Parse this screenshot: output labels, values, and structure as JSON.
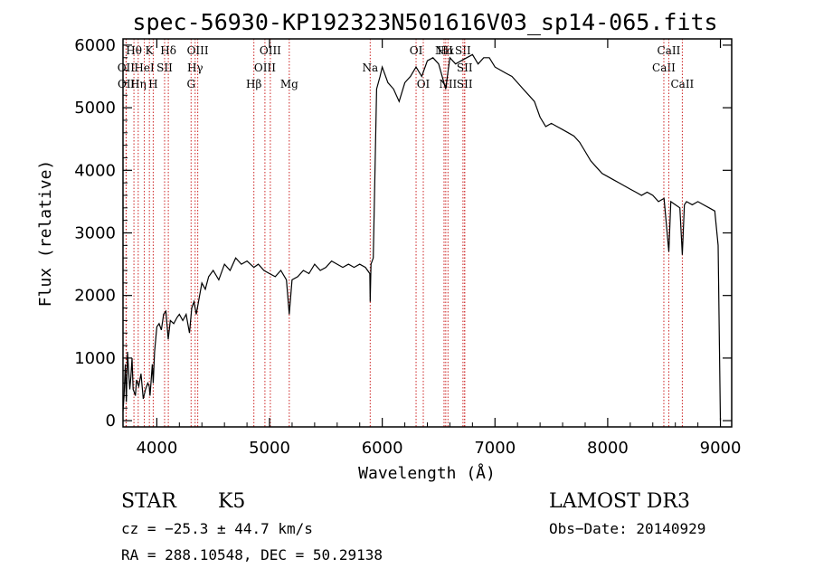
{
  "chart_data": {
    "type": "line",
    "title": "spec-56930-KP192323N501616V03_sp14-065.fits",
    "xlabel": "Wavelength (Å)",
    "ylabel": "Flux (relative)",
    "xlim": [
      3700,
      9100
    ],
    "ylim": [
      -100,
      6100
    ],
    "xticks": [
      4000,
      5000,
      6000,
      7000,
      8000,
      9000
    ],
    "yticks": [
      0,
      1000,
      2000,
      3000,
      4000,
      5000,
      6000
    ],
    "grid": false,
    "series": [
      {
        "x": [
          3700,
          3710,
          3720,
          3730,
          3740,
          3750,
          3760,
          3770,
          3780,
          3790,
          3800,
          3810,
          3820,
          3840,
          3860,
          3880,
          3900,
          3920,
          3933,
          3940,
          3960,
          3968,
          3980,
          4000,
          4020,
          4040,
          4060,
          4080,
          4101,
          4120,
          4150,
          4180,
          4200,
          4230,
          4260,
          4290,
          4310,
          4330,
          4350,
          4380,
          4400,
          4430,
          4460,
          4500,
          4550,
          4600,
          4650,
          4700,
          4750,
          4800,
          4861,
          4900,
          4950,
          5000,
          5050,
          5100,
          5150,
          5175,
          5200,
          5250,
          5300,
          5350,
          5400,
          5450,
          5500,
          5550,
          5600,
          5650,
          5700,
          5750,
          5800,
          5850,
          5890,
          5893,
          5900,
          5920,
          5950,
          5980,
          6000,
          6050,
          6100,
          6150,
          6200,
          6250,
          6300,
          6350,
          6400,
          6450,
          6500,
          6563,
          6600,
          6650,
          6700,
          6750,
          6800,
          6850,
          6900,
          6950,
          7000,
          7050,
          7100,
          7150,
          7200,
          7250,
          7300,
          7350,
          7400,
          7450,
          7500,
          7550,
          7600,
          7650,
          7700,
          7750,
          7800,
          7850,
          7900,
          7950,
          8000,
          8050,
          8100,
          8150,
          8200,
          8250,
          8300,
          8350,
          8400,
          8450,
          8500,
          8542,
          8560,
          8600,
          8640,
          8662,
          8680,
          8700,
          8750,
          8800,
          8850,
          8900,
          8950,
          8980,
          9000
        ],
        "y": [
          150,
          400,
          900,
          300,
          1100,
          800,
          500,
          700,
          1000,
          500,
          450,
          400,
          650,
          550,
          750,
          350,
          500,
          600,
          550,
          400,
          900,
          600,
          1100,
          1500,
          1550,
          1450,
          1700,
          1750,
          1300,
          1600,
          1550,
          1650,
          1700,
          1600,
          1700,
          1400,
          1800,
          1900,
          1700,
          2000,
          2200,
          2100,
          2300,
          2400,
          2250,
          2500,
          2400,
          2600,
          2500,
          2550,
          2450,
          2500,
          2400,
          2350,
          2300,
          2400,
          2250,
          1700,
          2250,
          2300,
          2400,
          2350,
          2500,
          2400,
          2450,
          2550,
          2500,
          2450,
          2500,
          2450,
          2500,
          2450,
          2350,
          1900,
          2500,
          2600,
          5300,
          5500,
          5650,
          5400,
          5300,
          5100,
          5400,
          5500,
          5650,
          5500,
          5750,
          5800,
          5700,
          5300,
          5800,
          5700,
          5750,
          5800,
          5850,
          5700,
          5800,
          5800,
          5650,
          5600,
          5550,
          5500,
          5400,
          5300,
          5200,
          5100,
          4850,
          4700,
          4750,
          4700,
          4650,
          4600,
          4550,
          4450,
          4300,
          4150,
          4050,
          3950,
          3900,
          3850,
          3800,
          3750,
          3700,
          3650,
          3600,
          3650,
          3600,
          3500,
          3550,
          2700,
          3500,
          3450,
          3400,
          2650,
          3450,
          3500,
          3450,
          3500,
          3450,
          3400,
          3350,
          2800,
          0
        ]
      }
    ],
    "line_markers": [
      {
        "label": "Hθ",
        "x": 3797,
        "row": 0
      },
      {
        "label": "OII",
        "x": 3727,
        "row": 1
      },
      {
        "label": "OII",
        "x": 3729,
        "row": 2
      },
      {
        "label": "Hη",
        "x": 3835,
        "row": 2
      },
      {
        "label": "HeI",
        "x": 3889,
        "row": 1
      },
      {
        "label": "K",
        "x": 3934,
        "row": 0
      },
      {
        "label": "H",
        "x": 3968,
        "row": 2
      },
      {
        "label": "SII",
        "x": 4069,
        "row": 1
      },
      {
        "label": "Hδ",
        "x": 4102,
        "row": 0
      },
      {
        "label": "OIII",
        "x": 4363,
        "row": 0
      },
      {
        "label": "Hγ",
        "x": 4340,
        "row": 1
      },
      {
        "label": "G",
        "x": 4304,
        "row": 2
      },
      {
        "label": "Hβ",
        "x": 4861,
        "row": 2
      },
      {
        "label": "OIII",
        "x": 4959,
        "row": 1
      },
      {
        "label": "OIII",
        "x": 5007,
        "row": 0
      },
      {
        "label": "Mg",
        "x": 5175,
        "row": 2
      },
      {
        "label": "Na",
        "x": 5893,
        "row": 1
      },
      {
        "label": "OI",
        "x": 6300,
        "row": 0
      },
      {
        "label": "OI",
        "x": 6364,
        "row": 2
      },
      {
        "label": "NII",
        "x": 6548,
        "row": 0
      },
      {
        "label": "Hα",
        "x": 6563,
        "row": 0
      },
      {
        "label": "NII",
        "x": 6583,
        "row": 2
      },
      {
        "label": "SII",
        "x": 6716,
        "row": 0
      },
      {
        "label": "SII",
        "x": 6731,
        "row": 1
      },
      {
        "label": "SII",
        "x": 6731,
        "row": 2
      },
      {
        "label": "CaII",
        "x": 8498,
        "row": 1
      },
      {
        "label": "CaII",
        "x": 8542,
        "row": 0
      },
      {
        "label": "CaII",
        "x": 8662,
        "row": 2
      }
    ]
  },
  "info": {
    "object_type": "STAR",
    "subclass": "K5",
    "survey": "LAMOST DR3",
    "cz": "cz = −25.3 ± 44.7 km/s",
    "obs_date": "Obs−Date: 20140929",
    "coords": "RA = 288.10548, DEC =  50.29138"
  }
}
